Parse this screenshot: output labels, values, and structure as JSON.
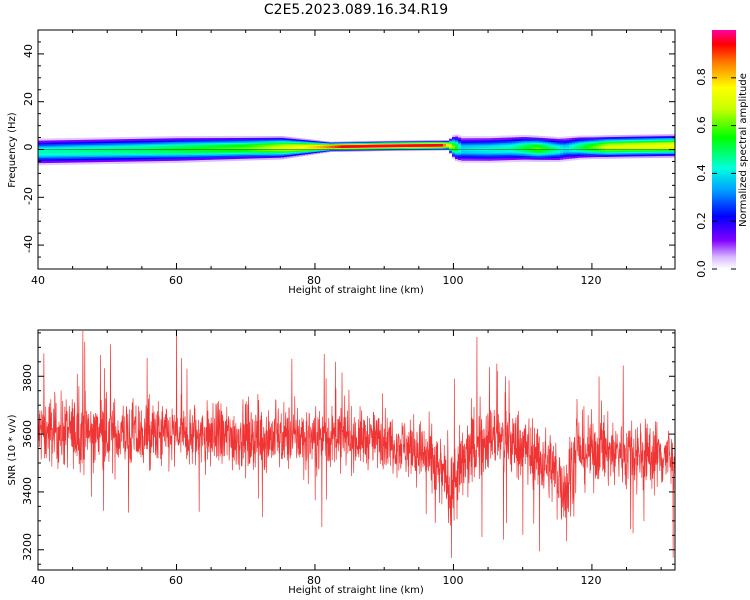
{
  "title": "C2E5.2023.089.16.34.R19",
  "chart_data": [
    {
      "type": "heatmap",
      "xlabel": "Height of straight line (km)",
      "ylabel": "Frequency (Hz)",
      "xlim": [
        40,
        132
      ],
      "ylim": [
        -50,
        50
      ],
      "xticks": [
        "40",
        "60",
        "80",
        "100",
        "120"
      ],
      "yticks": [
        "40",
        "20",
        "0",
        "-20",
        "-40"
      ],
      "colorbar": {
        "label": "Normalized spectral amplitude",
        "range": [
          0,
          1
        ],
        "ticks": [
          "0.0",
          "0.2",
          "0.4",
          "0.6",
          "0.8"
        ]
      },
      "band": {
        "center_freq_hz": [
          [
            40,
            -1
          ],
          [
            50,
            -0.5
          ],
          [
            60,
            0
          ],
          [
            70,
            0.5
          ],
          [
            80,
            1
          ],
          [
            90,
            1.5
          ],
          [
            99,
            1.8
          ],
          [
            101,
            0
          ],
          [
            105,
            0
          ],
          [
            110,
            0.5
          ],
          [
            115,
            0
          ],
          [
            118,
            0.8
          ],
          [
            125,
            1.2
          ],
          [
            132,
            1.5
          ]
        ],
        "halfwidth_hz": [
          [
            40,
            4
          ],
          [
            60,
            4
          ],
          [
            75,
            3.5
          ],
          [
            82,
            1.5
          ],
          [
            90,
            1.5
          ],
          [
            99,
            1.5
          ],
          [
            100,
            4
          ],
          [
            110,
            4
          ],
          [
            120,
            3.5
          ],
          [
            132,
            3.5
          ]
        ],
        "peak_amplitude": [
          [
            40,
            0.45
          ],
          [
            55,
            0.5
          ],
          [
            70,
            0.6
          ],
          [
            80,
            0.8
          ],
          [
            84,
            0.95
          ],
          [
            98,
            0.95
          ],
          [
            101,
            0.4
          ],
          [
            108,
            0.45
          ],
          [
            112,
            0.6
          ],
          [
            116,
            0.4
          ],
          [
            122,
            0.7
          ],
          [
            132,
            0.75
          ]
        ]
      }
    },
    {
      "type": "line",
      "xlabel": "Height of straight line (km)",
      "ylabel": "SNR (10 * v/v)",
      "xlim": [
        40,
        132
      ],
      "ylim": [
        3130,
        3960
      ],
      "xticks": [
        "40",
        "60",
        "80",
        "100",
        "120"
      ],
      "yticks": [
        "3800",
        "3600",
        "3400",
        "3200"
      ],
      "series": [
        {
          "color": "#f03333",
          "mean_envelope": [
            [
              40,
              3610
            ],
            [
              50,
              3600
            ],
            [
              60,
              3590
            ],
            [
              70,
              3590
            ],
            [
              80,
              3590
            ],
            [
              90,
              3580
            ],
            [
              95,
              3540
            ],
            [
              100,
              3420
            ],
            [
              102,
              3520
            ],
            [
              105,
              3590
            ],
            [
              110,
              3560
            ],
            [
              114,
              3490
            ],
            [
              116,
              3420
            ],
            [
              118,
              3540
            ],
            [
              125,
              3540
            ],
            [
              132,
              3520
            ]
          ],
          "spread_envelope": [
            [
              40,
              110
            ],
            [
              60,
              110
            ],
            [
              80,
              100
            ],
            [
              90,
              85
            ],
            [
              98,
              110
            ],
            [
              101,
              140
            ],
            [
              104,
              110
            ],
            [
              114,
              110
            ],
            [
              116,
              140
            ],
            [
              120,
              110
            ],
            [
              132,
              110
            ]
          ]
        }
      ]
    }
  ],
  "colors": {
    "band_edge": "#e8e0ff",
    "band_inner": "#9966ff",
    "band_core": "#00e5a0",
    "snr_line": "#f03333"
  }
}
